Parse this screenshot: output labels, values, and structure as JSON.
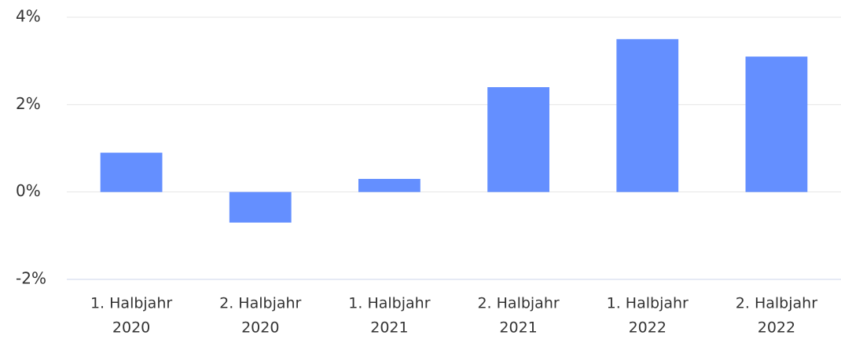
{
  "chart_data": {
    "type": "bar",
    "categories": [
      [
        "1. Halbjahr",
        "2020"
      ],
      [
        "2. Halbjahr",
        "2020"
      ],
      [
        "1. Halbjahr",
        "2021"
      ],
      [
        "2. Halbjahr",
        "2021"
      ],
      [
        "1. Halbjahr",
        "2022"
      ],
      [
        "2. Halbjahr",
        "2022"
      ]
    ],
    "values": [
      0.9,
      -0.7,
      0.3,
      2.4,
      3.5,
      3.1
    ],
    "color": "#648fff",
    "ylim": [
      -2,
      4
    ],
    "yticks": [
      {
        "value": -2,
        "label": "-2%"
      },
      {
        "value": 0,
        "label": "0%"
      },
      {
        "value": 2,
        "label": "2%"
      },
      {
        "value": 4,
        "label": "4%"
      }
    ],
    "grid": true
  }
}
